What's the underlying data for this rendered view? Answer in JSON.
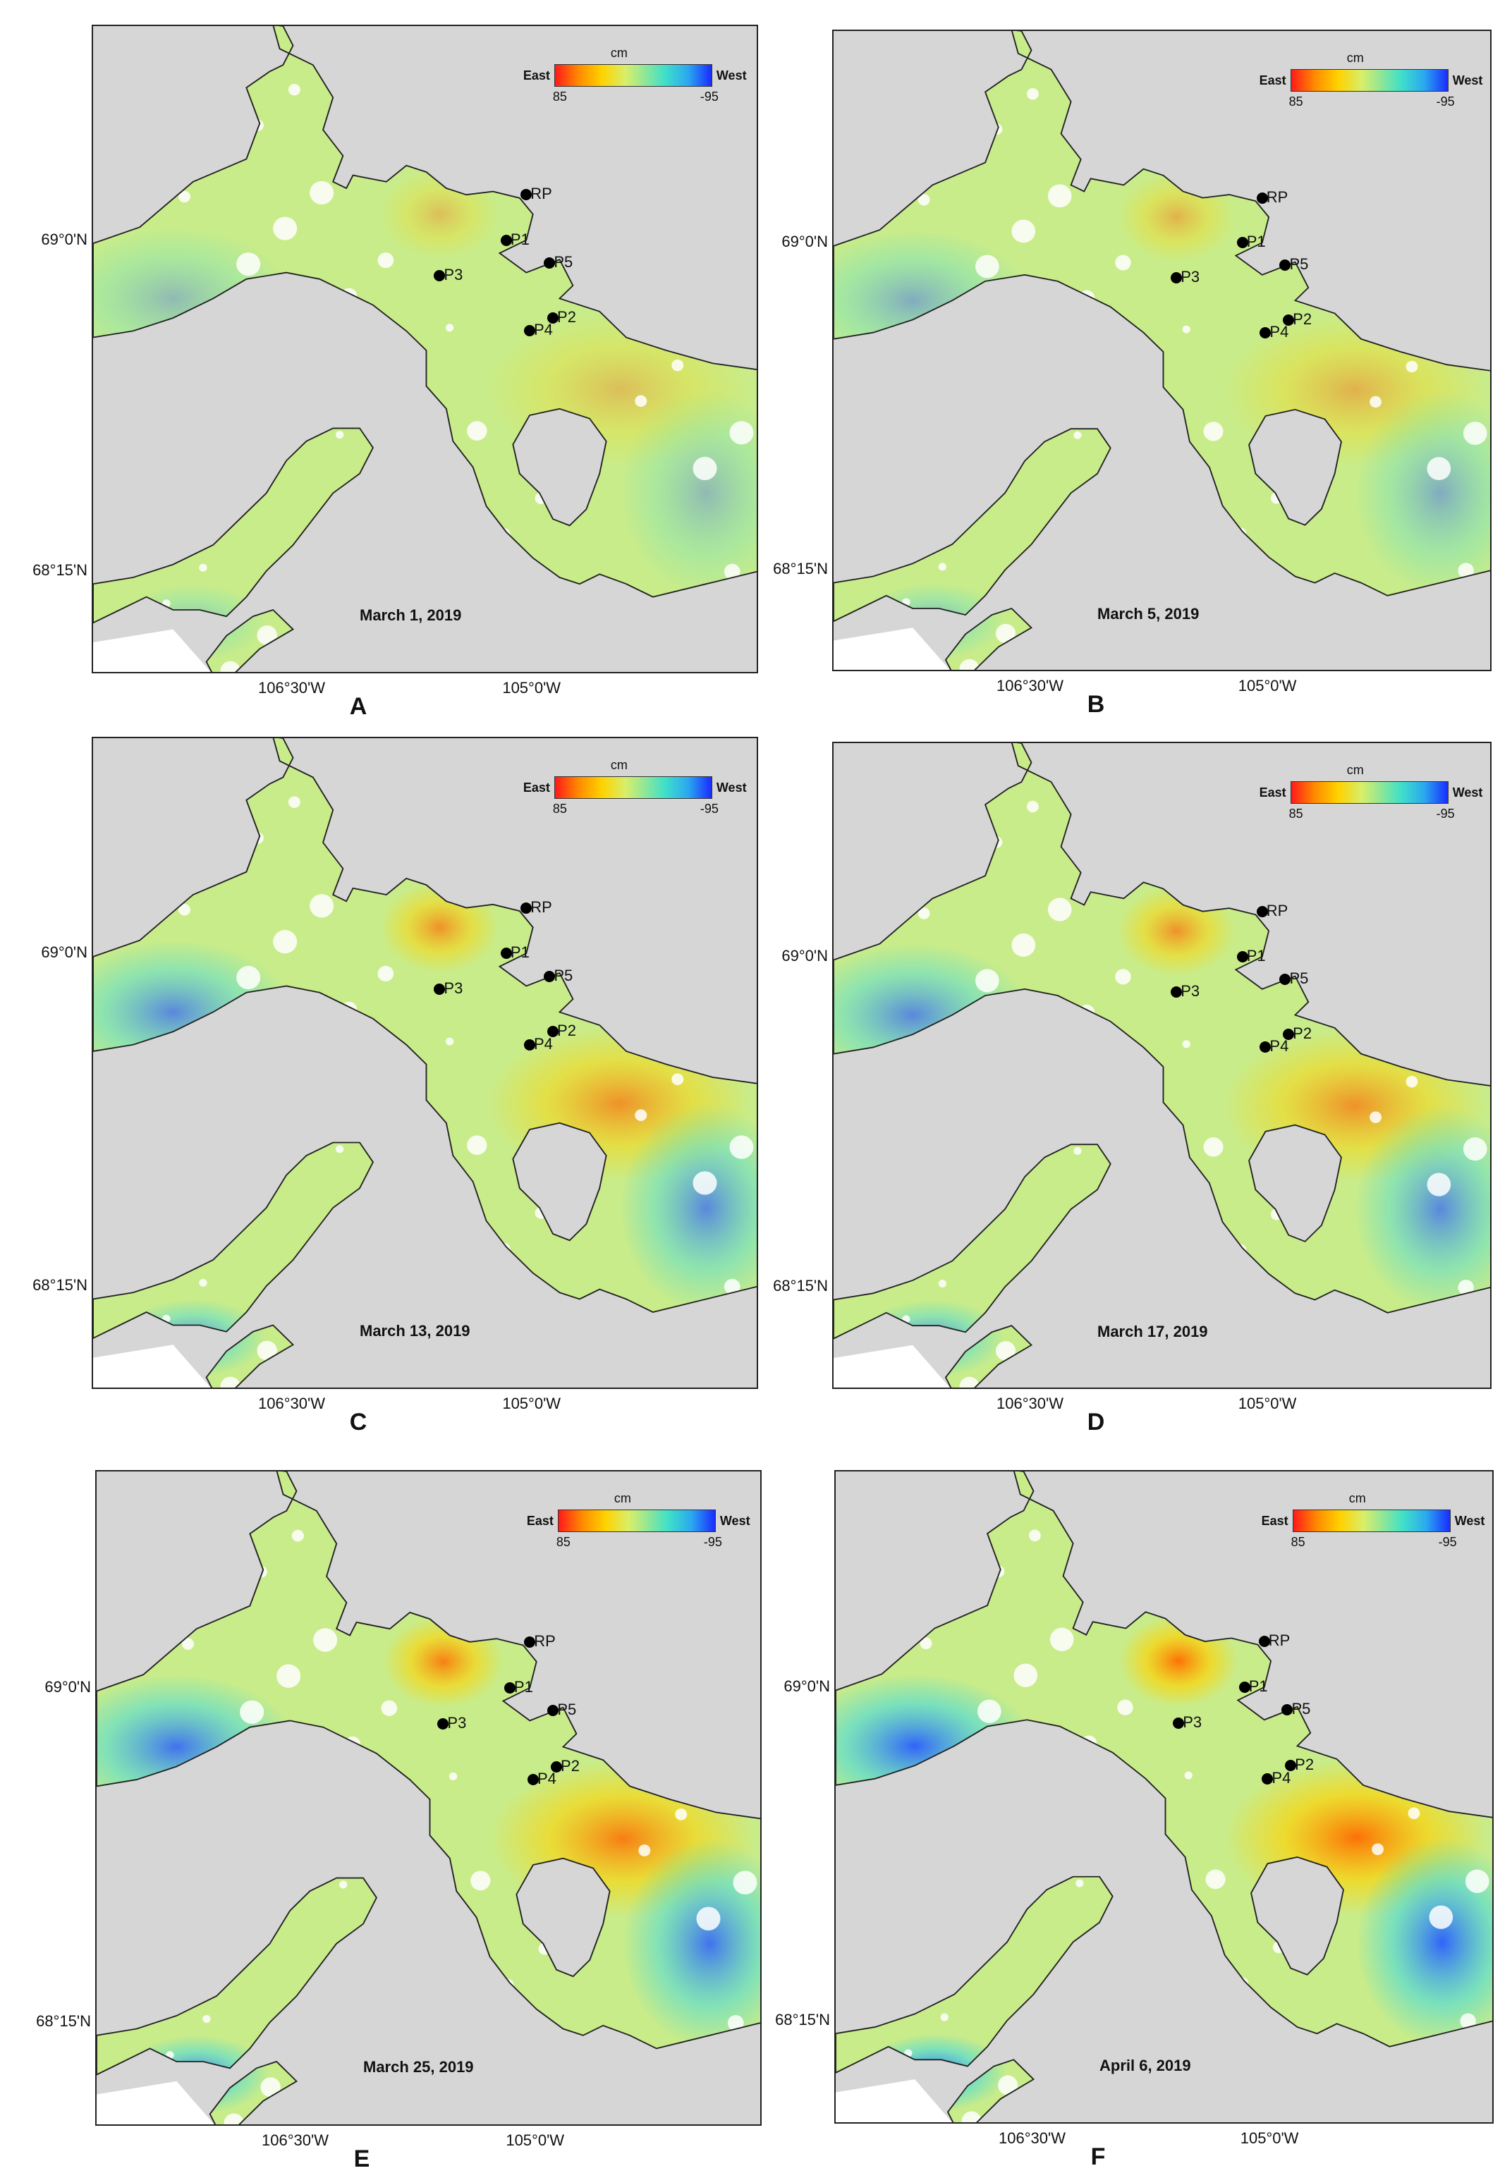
{
  "units": "cm",
  "legend": {
    "left_label": "East",
    "right_label": "West",
    "min_value": "85",
    "max_value": "-95"
  },
  "lat_labels": [
    "69°0'N",
    "68°15'N"
  ],
  "lon_labels": [
    "106°30'W",
    "105°0'W"
  ],
  "colors": {
    "background": "#d6d6d6",
    "land_base": "#c8ec8a",
    "east_high": "#ff1a1a",
    "west_low": "#1a2cff"
  },
  "point_labels": [
    "RP",
    "P1",
    "P5",
    "P3",
    "P2",
    "P4"
  ],
  "panels": [
    {
      "letter": "A",
      "date": "March 1, 2019"
    },
    {
      "letter": "B",
      "date": "March 5, 2019"
    },
    {
      "letter": "C",
      "date": "March 13, 2019"
    },
    {
      "letter": "D",
      "date": "March 17, 2019"
    },
    {
      "letter": "E",
      "date": "March 25, 2019"
    },
    {
      "letter": "F",
      "date": "April 6, 2019"
    }
  ]
}
